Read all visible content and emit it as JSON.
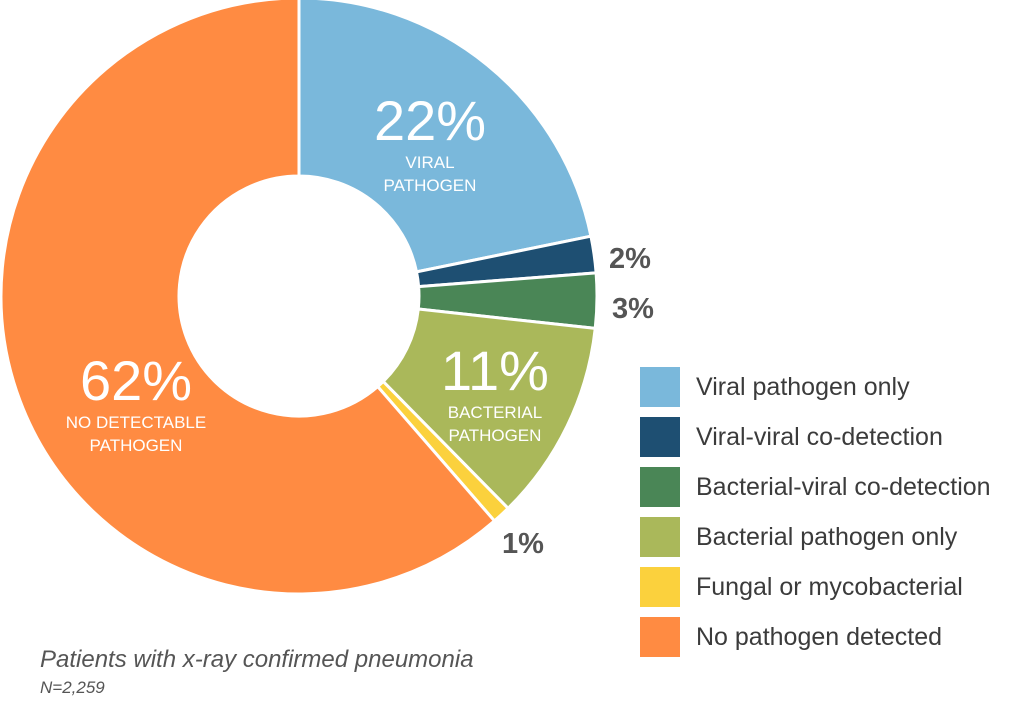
{
  "chart_data": {
    "type": "pie",
    "donut": true,
    "slices": [
      {
        "legend": "Viral pathogen only",
        "value": 22,
        "label": "22%",
        "sublabel": [
          "VIRAL",
          "PATHOGEN"
        ],
        "color": "#7ab8db",
        "label_style": "inside"
      },
      {
        "legend": "Viral-viral co-detection",
        "value": 2,
        "label": "2%",
        "sublabel": [],
        "color": "#1e4f72",
        "label_style": "outside"
      },
      {
        "legend": "Bacterial-viral co-detection",
        "value": 3,
        "label": "3%",
        "sublabel": [],
        "color": "#4a8656",
        "label_style": "outside"
      },
      {
        "legend": "Bacterial pathogen only",
        "value": 11,
        "label": "11%",
        "sublabel": [
          "BACTERIAL",
          "PATHOGEN"
        ],
        "color": "#aab85a",
        "label_style": "inside"
      },
      {
        "legend": "Fungal or mycobacterial",
        "value": 1,
        "label": "1%",
        "sublabel": [],
        "color": "#fbd13d",
        "label_style": "outside"
      },
      {
        "legend": "No pathogen detected",
        "value": 62,
        "label": "62%",
        "sublabel": [
          "NO DETECTABLE",
          "PATHOGEN"
        ],
        "color": "#ff8b42",
        "label_style": "inside"
      }
    ],
    "start": "top",
    "direction": "clockwise",
    "legend_position": "right",
    "caption": "Patients with x-ray confirmed pneumonia",
    "subcaption": "N=2,259"
  }
}
